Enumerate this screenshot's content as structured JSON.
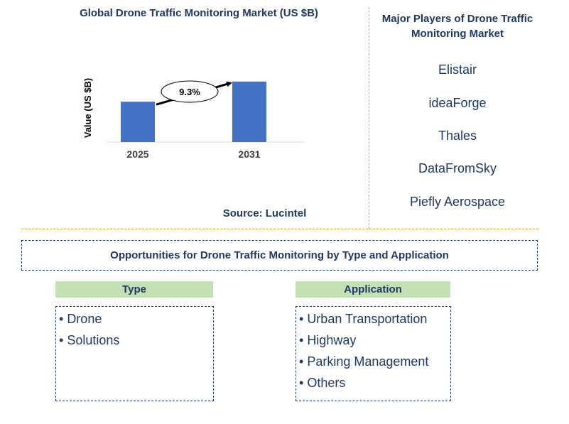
{
  "chart_data": {
    "type": "bar",
    "title": "Global Drone Traffic Monitoring Market (US $B)",
    "categories": [
      "2025",
      "2031"
    ],
    "values": [
      1.0,
      1.5
    ],
    "ylabel": "Value (US $B)",
    "xlabel": "",
    "ylim": [
      0,
      1.55
    ],
    "annotation": "9.3%",
    "bar_color": "#4472c4"
  },
  "source": "Source: Lucintel",
  "players": {
    "title": "Major Players of Drone Traffic Monitoring Market",
    "items": [
      "Elistair",
      "ideaForge",
      "Thales",
      "DataFromSky",
      "Piefly Aerospace"
    ]
  },
  "opportunities": {
    "title": "Opportunities for Drone Traffic Monitoring by Type and Application",
    "type": {
      "label": "Type",
      "items": [
        "Drone",
        "Solutions"
      ]
    },
    "application": {
      "label": "Application",
      "items": [
        "Urban Transportation",
        "Highway",
        "Parking Management",
        "Others"
      ]
    }
  }
}
